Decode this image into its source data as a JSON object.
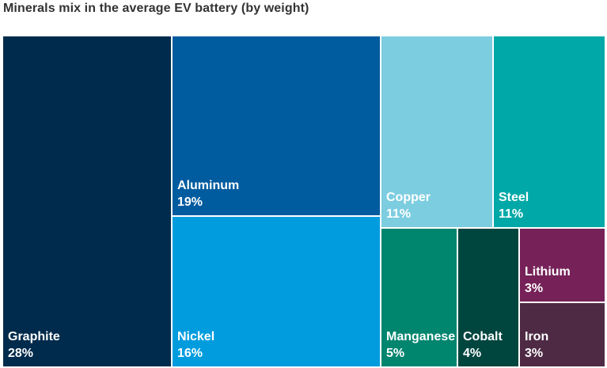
{
  "title": "Minerals mix in the average EV battery (by weight)",
  "chart_data": {
    "type": "treemap",
    "title": "Minerals mix in the average EV battery (by weight)",
    "items": [
      {
        "name": "Graphite",
        "value": 28,
        "label": "28%",
        "color": "#002b4c"
      },
      {
        "name": "Aluminum",
        "value": 19,
        "label": "19%",
        "color": "#005b9f"
      },
      {
        "name": "Nickel",
        "value": 16,
        "label": "16%",
        "color": "#009cde"
      },
      {
        "name": "Copper",
        "value": 11,
        "label": "11%",
        "color": "#7ccde0"
      },
      {
        "name": "Steel",
        "value": 11,
        "label": "11%",
        "color": "#00a9a7"
      },
      {
        "name": "Manganese",
        "value": 5,
        "label": "5%",
        "color": "#00856f"
      },
      {
        "name": "Cobalt",
        "value": 4,
        "label": "4%",
        "color": "#00463f"
      },
      {
        "name": "Lithium",
        "value": 3,
        "label": "3%",
        "color": "#762259"
      },
      {
        "name": "Iron",
        "value": 3,
        "label": "3%",
        "color": "#4e2a45"
      }
    ]
  }
}
